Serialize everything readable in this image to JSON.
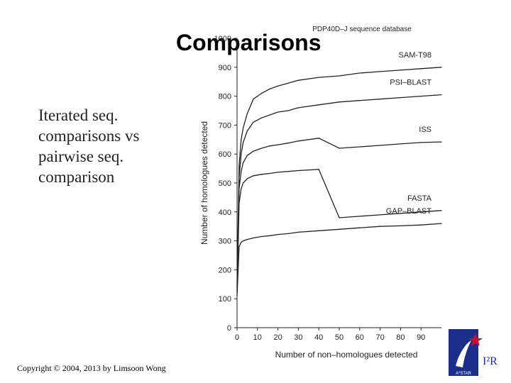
{
  "slide": {
    "title": "Comparisons",
    "bullet": "Iterated seq. comparisons vs pairwise seq. comparison",
    "footer": "Copyright © 2004, 2013 by Limsoon Wong",
    "logo": {
      "left_text": "A*STAR",
      "right_text": "I²R",
      "brand_color": "#1b2f8a",
      "accent_color": "#c8102e"
    }
  },
  "chart_data": {
    "type": "line",
    "title": "PDP40D–J sequence database",
    "xlabel": "Number of non–homologues detected",
    "ylabel": "Number of homologues detected",
    "xlim": [
      0,
      100
    ],
    "ylim": [
      0,
      1000
    ],
    "xticks": [
      0,
      10,
      20,
      30,
      40,
      50,
      60,
      70,
      80,
      90
    ],
    "yticks": [
      0,
      100,
      200,
      300,
      400,
      500,
      600,
      700,
      800,
      900,
      1000
    ],
    "grid": false,
    "legend": "inline labels at right",
    "series": [
      {
        "name": "SAM-T98",
        "x": [
          0,
          1,
          2,
          3,
          5,
          8,
          12,
          16,
          20,
          25,
          30,
          40,
          50,
          60,
          70,
          80,
          90,
          100
        ],
        "y": [
          150,
          560,
          650,
          690,
          740,
          790,
          810,
          825,
          835,
          845,
          855,
          865,
          870,
          880,
          885,
          890,
          895,
          900
        ]
      },
      {
        "name": "PSI–BLAST",
        "x": [
          0,
          1,
          2,
          3,
          5,
          8,
          12,
          16,
          20,
          25,
          30,
          40,
          50,
          60,
          70,
          80,
          90,
          100
        ],
        "y": [
          140,
          520,
          600,
          640,
          680,
          710,
          725,
          735,
          745,
          750,
          760,
          770,
          780,
          785,
          790,
          795,
          800,
          805
        ]
      },
      {
        "name": "ISS",
        "x": [
          0,
          1,
          2,
          3,
          5,
          8,
          12,
          16,
          20,
          25,
          30,
          40,
          50,
          60,
          70,
          80,
          90,
          100
        ],
        "y": [
          130,
          480,
          540,
          570,
          595,
          610,
          620,
          628,
          632,
          638,
          645,
          655,
          620,
          625,
          630,
          635,
          640,
          642
        ]
      },
      {
        "name": "FASTA",
        "x": [
          0,
          1,
          2,
          3,
          5,
          8,
          12,
          16,
          20,
          25,
          30,
          40,
          50,
          60,
          70,
          80,
          90,
          100
        ],
        "y": [
          120,
          430,
          480,
          500,
          515,
          525,
          530,
          533,
          537,
          540,
          543,
          547,
          380,
          385,
          390,
          395,
          400,
          405
        ]
      },
      {
        "name": "GAP–BLAST",
        "x": [
          0,
          1,
          2,
          3,
          5,
          8,
          12,
          16,
          20,
          25,
          30,
          40,
          50,
          60,
          70,
          80,
          90,
          100
        ],
        "y": [
          110,
          280,
          295,
          300,
          305,
          310,
          315,
          318,
          322,
          325,
          330,
          335,
          340,
          345,
          350,
          352,
          355,
          360
        ]
      }
    ]
  }
}
